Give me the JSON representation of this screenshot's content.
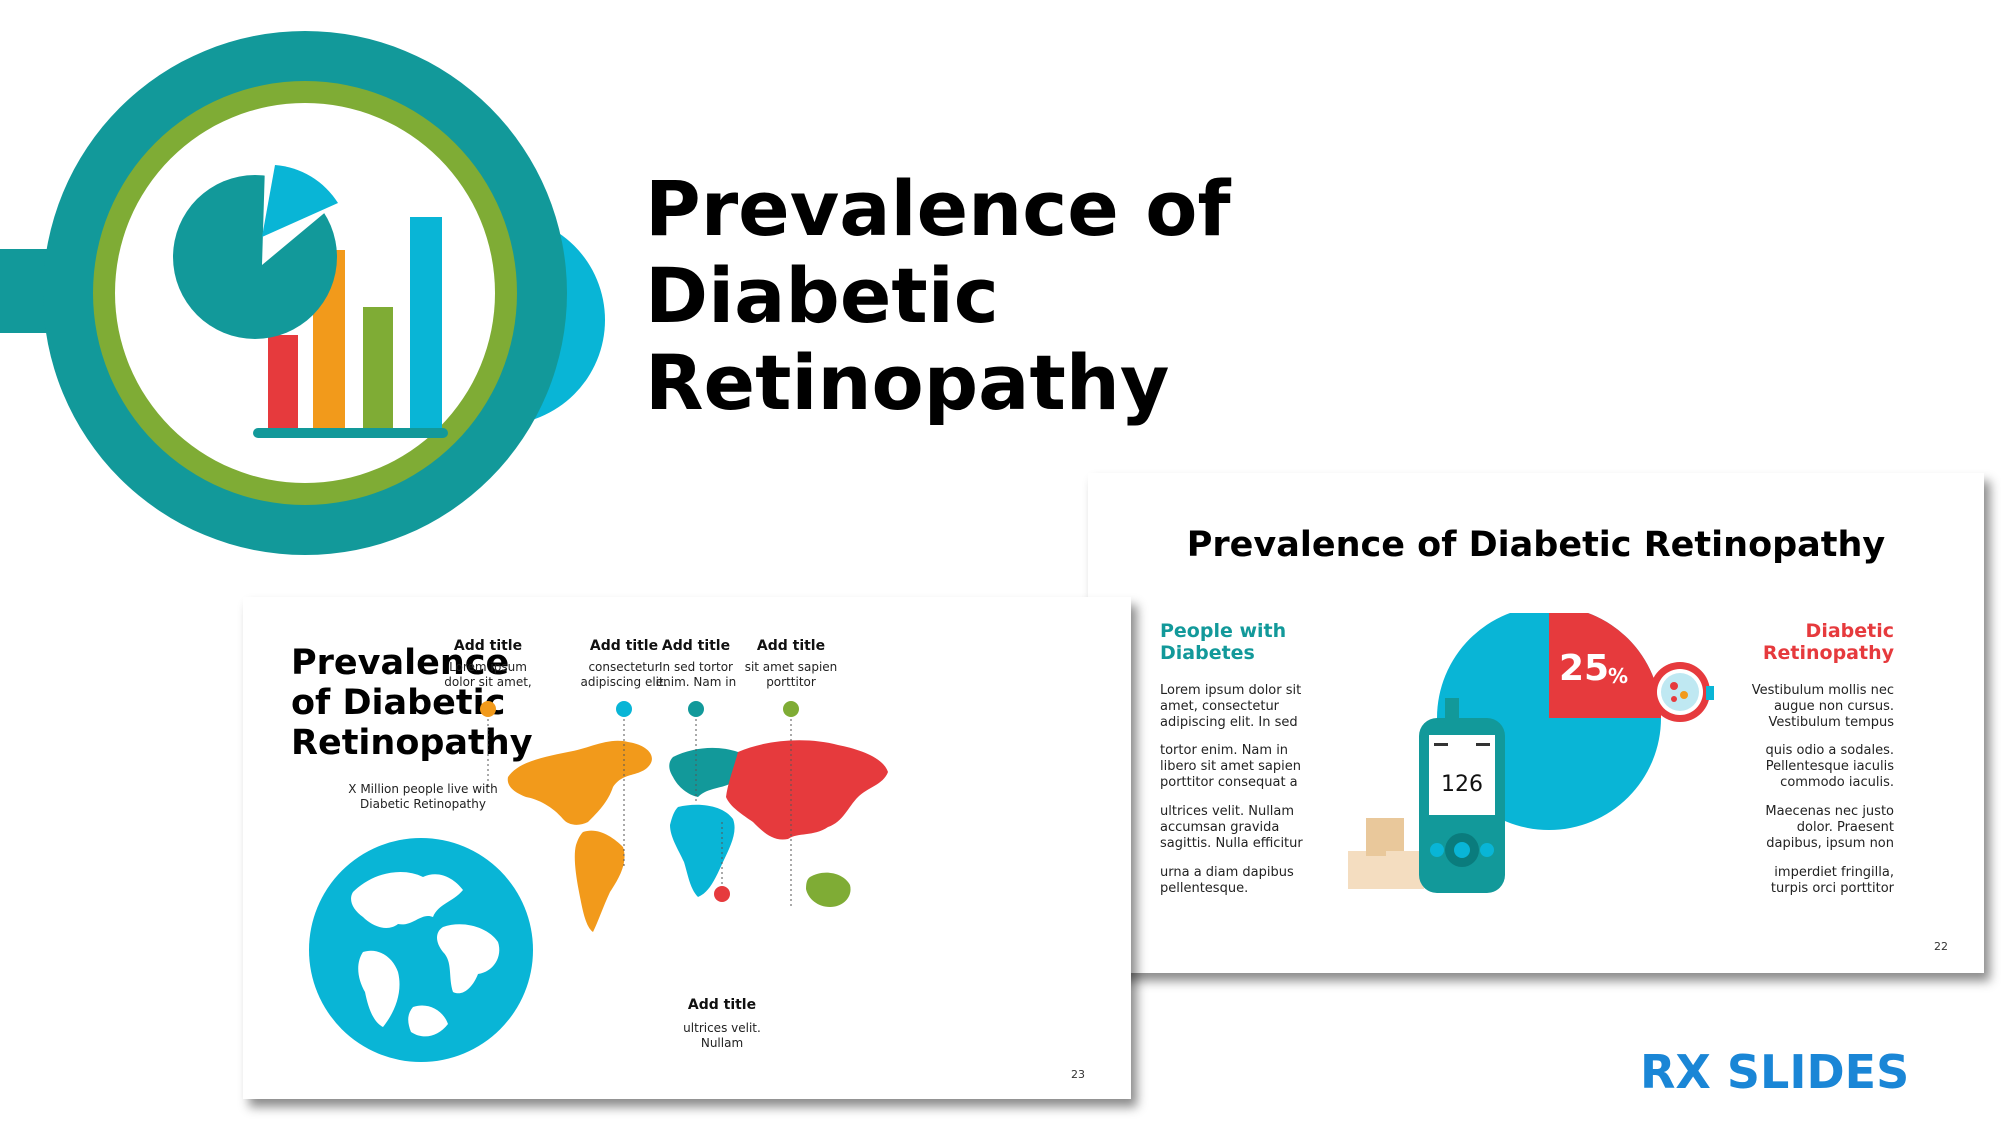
{
  "hero": {
    "title_lines": [
      "Prevalence of",
      "Diabetic",
      "Retinopathy"
    ]
  },
  "slide_right": {
    "title": "Prevalence of Diabetic Retinopathy",
    "left_heading": "People with Diabetes",
    "left_paragraphs": [
      "Lorem ipsum dolor sit\namet, consectetur\nadipiscing elit. In sed",
      "tortor enim. Nam in\nlibero sit amet sapien\nporttitor consequat a",
      "ultrices velit. Nullam\naccumsan gravida\nsagittis. Nulla efficitur",
      "urna a diam dapibus\npellentesque."
    ],
    "right_heading": "Diabetic Retinopathy",
    "right_paragraphs": [
      "Vestibulum mollis nec\naugue non cursus.\nVestibulum tempus",
      "quis odio a sodales.\nPellentesque iaculis\ncommodo iaculis.",
      "Maecenas nec justo\ndolor. Praesent\ndapibus, ipsum non",
      "imperdiet fringilla,\nturpis orci porttitor"
    ],
    "percent_value": "25",
    "percent_sign": "%",
    "meter_reading": "126",
    "page_number": "22",
    "chart_share": 0.25
  },
  "slide_left": {
    "title_lines": [
      "Prevalence",
      "of Diabetic",
      "Retinopathy"
    ],
    "subtitle": "X Million people live with\nDiabetic Retinopathy",
    "pins": [
      {
        "title": "Add title",
        "text": "Lorem ipsum\ndolor sit amet,"
      },
      {
        "title": "Add title",
        "text": "consectetur\nadipiscing elit."
      },
      {
        "title": "Add title",
        "text": "In sed tortor\nenim. Nam in"
      },
      {
        "title": "Add title",
        "text": "sit amet sapien\nporttitor"
      },
      {
        "title": "Add title",
        "text": "ultrices velit.\nNullam"
      }
    ],
    "page_number": "23"
  },
  "brand": {
    "name": "RX SLIDES"
  },
  "colors": {
    "teal": "#12999a",
    "green": "#7fac35",
    "cyan": "#09b5d6",
    "red": "#e63a3d",
    "orange": "#f29a1b",
    "brand_blue": "#1a86d6"
  }
}
